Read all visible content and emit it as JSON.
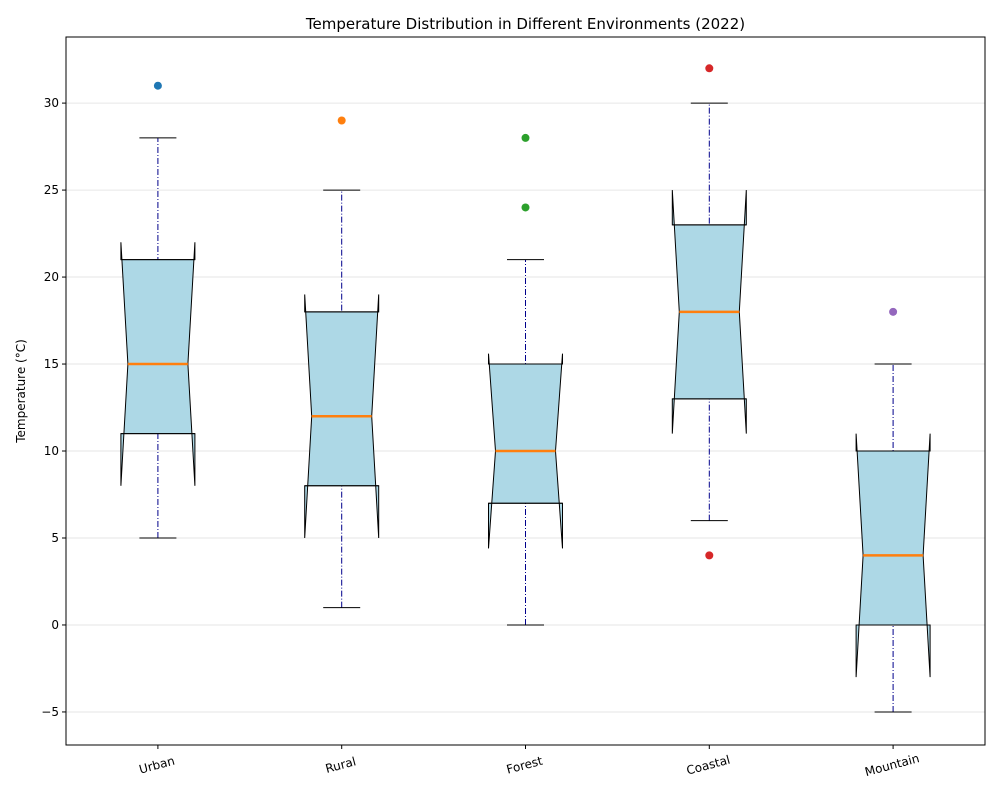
{
  "chart_data": {
    "type": "boxplot",
    "title": "Temperature Distribution in Different Environments (2022)",
    "xlabel": "",
    "ylabel": "Temperature (°C)",
    "ylim": [
      -6.9,
      33.8
    ],
    "yticks": [
      -5,
      0,
      5,
      10,
      15,
      20,
      25,
      30
    ],
    "ytick_labels": [
      "−5",
      "0",
      "5",
      "10",
      "15",
      "20",
      "25",
      "30"
    ],
    "grid": "horizontal",
    "notched": true,
    "box_fill": "#add8e6",
    "median_color": "#ff7f0e",
    "whisker_color": "#00008b",
    "categories": [
      "Urban",
      "Rural",
      "Forest",
      "Coastal",
      "Mountain"
    ],
    "series": [
      {
        "category": "Urban",
        "whisker_low": 5,
        "q1": 11,
        "median": 15,
        "q3": 21,
        "whisker_high": 28,
        "notch_low": 8,
        "notch_high": 22,
        "outliers": [
          31
        ],
        "outlier_color": "#1f77b4"
      },
      {
        "category": "Rural",
        "whisker_low": 1,
        "q1": 8,
        "median": 12,
        "q3": 18,
        "whisker_high": 25,
        "notch_low": 5,
        "notch_high": 19,
        "outliers": [
          29
        ],
        "outlier_color": "#ff7f0e"
      },
      {
        "category": "Forest",
        "whisker_low": 0,
        "q1": 7,
        "median": 10,
        "q3": 15,
        "whisker_high": 21,
        "notch_low": 4.4,
        "notch_high": 15.6,
        "outliers": [
          24,
          28
        ],
        "outlier_color": "#2ca02c"
      },
      {
        "category": "Coastal",
        "whisker_low": 6,
        "q1": 13,
        "median": 18,
        "q3": 23,
        "whisker_high": 30,
        "notch_low": 11,
        "notch_high": 25,
        "outliers": [
          4,
          32
        ],
        "outlier_color": "#d62728"
      },
      {
        "category": "Mountain",
        "whisker_low": -5,
        "q1": 0,
        "median": 4,
        "q3": 10,
        "whisker_high": 15,
        "notch_low": -3,
        "notch_high": 11,
        "outliers": [
          18
        ],
        "outlier_color": "#9467bd"
      }
    ]
  }
}
